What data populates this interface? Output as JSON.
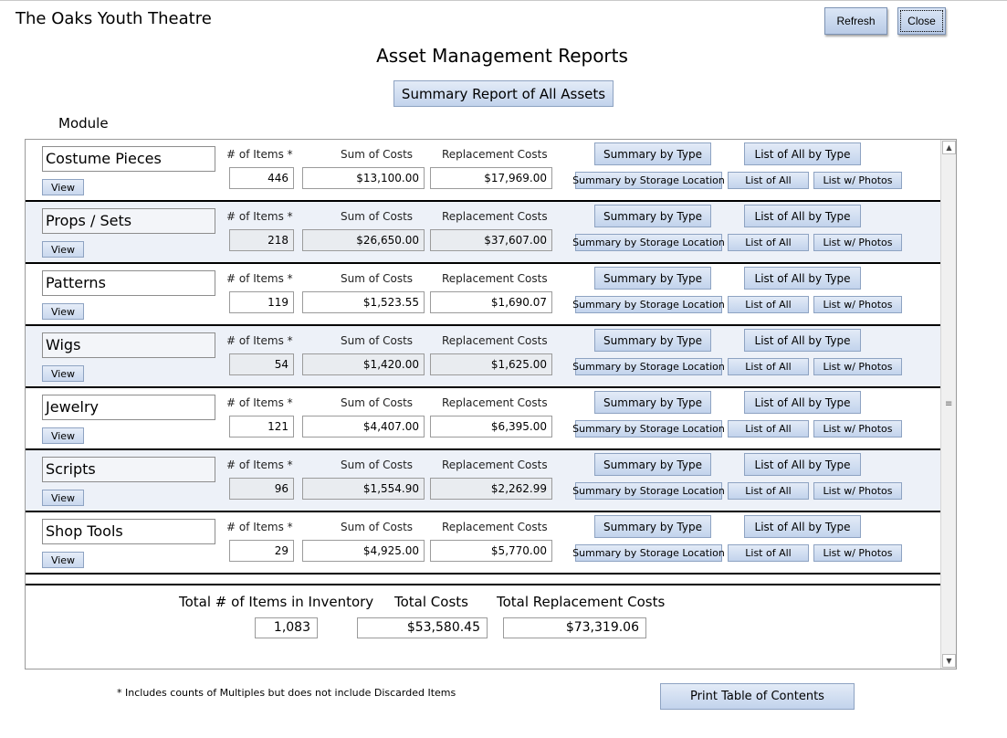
{
  "header": {
    "app_title": "The Oaks Youth Theatre",
    "refresh_label": "Refresh",
    "close_label": "Close",
    "page_title": "Asset Management Reports",
    "summary_button": "Summary Report of All Assets",
    "module_label": "Module"
  },
  "labels": {
    "items": "# of Items *",
    "sum": "Sum of Costs",
    "replacement": "Replacement Costs",
    "view": "View",
    "summary_by_type": "Summary by Type",
    "list_all_by_type": "List of All by Type",
    "summary_by_storage": "Summary by Storage Location",
    "list_all": "List of All",
    "list_photos": "List w/ Photos"
  },
  "modules": [
    {
      "name": "Costume Pieces",
      "items": "446",
      "sum": "$13,100.00",
      "replacement": "$17,969.00"
    },
    {
      "name": "Props / Sets",
      "items": "218",
      "sum": "$26,650.00",
      "replacement": "$37,607.00"
    },
    {
      "name": "Patterns",
      "items": "119",
      "sum": "$1,523.55",
      "replacement": "$1,690.07"
    },
    {
      "name": "Wigs",
      "items": "54",
      "sum": "$1,420.00",
      "replacement": "$1,625.00"
    },
    {
      "name": "Jewelry",
      "items": "121",
      "sum": "$4,407.00",
      "replacement": "$6,395.00"
    },
    {
      "name": "Scripts",
      "items": "96",
      "sum": "$1,554.90",
      "replacement": "$2,262.99"
    },
    {
      "name": "Shop Tools",
      "items": "29",
      "sum": "$4,925.00",
      "replacement": "$5,770.00"
    }
  ],
  "totals": {
    "items_label": "Total # of Items in Inventory",
    "cost_label": "Total Costs",
    "replacement_label": "Total Replacement Costs",
    "items": "1,083",
    "cost": "$53,580.45",
    "replacement": "$73,319.06"
  },
  "footer": {
    "footnote": "* Includes counts of Multiples but does not include Discarded Items",
    "print_button": "Print Table of Contents"
  },
  "icons": {
    "scroll_up": "▲",
    "scroll_down": "▼",
    "scroll_grip": "≡"
  }
}
